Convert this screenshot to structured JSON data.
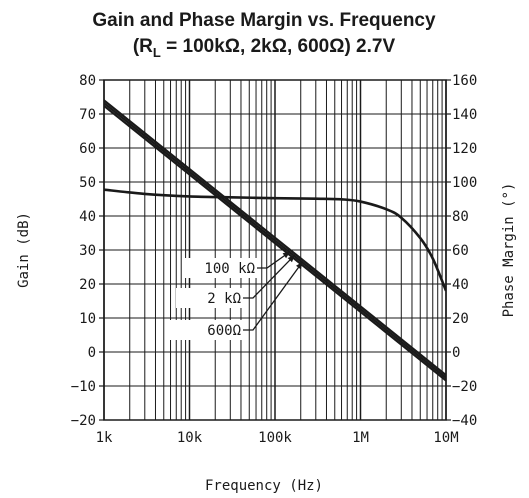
{
  "chart_data": {
    "type": "line",
    "title_line1": "Gain and Phase Margin vs. Frequency",
    "title_line2": {
      "prefix": "(R",
      "sub": "L",
      "rest": " = 100kΩ, 2kΩ, 600Ω) 2.7V"
    },
    "xlabel": "Frequency (Hz)",
    "ylabel_left": "Gain (dB)",
    "ylabel_right": "Phase Margin (°)",
    "x_scale": "log",
    "xlim": [
      1000,
      10000000
    ],
    "ylim_left": [
      -20,
      80
    ],
    "ylim_right": [
      -40,
      160
    ],
    "x_ticks": [
      {
        "value": 1000,
        "label": "1k"
      },
      {
        "value": 10000,
        "label": "10k"
      },
      {
        "value": 100000,
        "label": "100k"
      },
      {
        "value": 1000000,
        "label": "1M"
      },
      {
        "value": 10000000,
        "label": "10M"
      }
    ],
    "y_ticks_left": [
      {
        "value": 80,
        "label": "80"
      },
      {
        "value": 70,
        "label": "70"
      },
      {
        "value": 60,
        "label": "60"
      },
      {
        "value": 50,
        "label": "50"
      },
      {
        "value": 40,
        "label": "40"
      },
      {
        "value": 30,
        "label": "30"
      },
      {
        "value": 20,
        "label": "20"
      },
      {
        "value": 10,
        "label": "10"
      },
      {
        "value": 0,
        "label": "0"
      },
      {
        "value": -10,
        "label": "−10"
      },
      {
        "value": -20,
        "label": "−20"
      }
    ],
    "y_ticks_right": [
      {
        "value": 160,
        "label": "160"
      },
      {
        "value": 140,
        "label": "140"
      },
      {
        "value": 120,
        "label": "120"
      },
      {
        "value": 100,
        "label": "100"
      },
      {
        "value": 80,
        "label": "80"
      },
      {
        "value": 60,
        "label": "60"
      },
      {
        "value": 40,
        "label": "40"
      },
      {
        "value": 20,
        "label": "20"
      },
      {
        "value": 0,
        "label": "0"
      },
      {
        "value": -20,
        "label": "−20"
      },
      {
        "value": -40,
        "label": "−40"
      }
    ],
    "grid": true,
    "gain_series": [
      {
        "load": "100 kΩ",
        "x": [
          1000,
          10000000
        ],
        "y": [
          73.2,
          -7.6
        ]
      },
      {
        "load": "2 kΩ",
        "x": [
          1000,
          10000000
        ],
        "y": [
          74.0,
          -6.8
        ]
      },
      {
        "load": "600Ω",
        "x": [
          1000,
          10000000
        ],
        "y": [
          72.4,
          -8.4
        ]
      }
    ],
    "phase_series": {
      "axis": "right",
      "x": [
        1000,
        3000,
        10000,
        30000,
        100000,
        300000,
        600000,
        1000000,
        2000000,
        3000000,
        5000000,
        7000000,
        10000000
      ],
      "y": [
        95.5,
        93,
        91.5,
        91,
        90.5,
        90.2,
        89.8,
        88.5,
        84,
        79,
        67,
        55,
        36
      ]
    },
    "annotations": [
      {
        "label": "100 kΩ",
        "target": [
          150000,
          29.5
        ]
      },
      {
        "label": "2 kΩ",
        "target": [
          170000,
          28.5
        ]
      },
      {
        "label": "600Ω",
        "target": [
          210000,
          26.5
        ]
      }
    ]
  }
}
